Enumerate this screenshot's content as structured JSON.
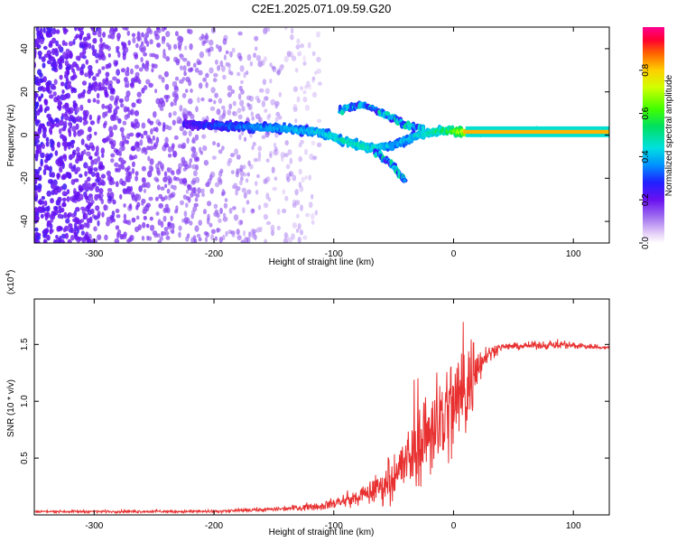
{
  "title": "C2E1.2025.071.09.59.G20",
  "chart_data": [
    {
      "type": "heatmap",
      "xlabel": "Height of straight line (km)",
      "ylabel": "Frequency (Hz)",
      "xlim": [
        -350,
        130
      ],
      "ylim": [
        -50,
        50
      ],
      "xticks": [
        -300,
        -200,
        -100,
        0,
        100
      ],
      "yticks": [
        -40,
        -20,
        0,
        20,
        40
      ],
      "colorbar": {
        "label": "Normalized spectral amplitude",
        "range": [
          0,
          1
        ],
        "ticks": [
          "0.0",
          "0.2",
          "0.4",
          "0.6",
          "0.8"
        ],
        "tick_values": [
          0,
          0.2,
          0.4,
          0.6,
          0.8
        ],
        "colormap": "rainbow-purple-to-red"
      },
      "features": {
        "noise_region_x": [
          -350,
          -110
        ],
        "main_ridge": [
          {
            "x": -220,
            "y": 5,
            "amp": 0.25
          },
          {
            "x": -180,
            "y": 4,
            "amp": 0.35
          },
          {
            "x": -140,
            "y": 3,
            "amp": 0.4
          },
          {
            "x": -110,
            "y": 1,
            "amp": 0.45
          },
          {
            "x": -90,
            "y": -3,
            "amp": 0.5
          },
          {
            "x": -70,
            "y": -6,
            "amp": 0.5
          },
          {
            "x": -50,
            "y": -5,
            "amp": 0.4
          },
          {
            "x": -30,
            "y": 0,
            "amp": 0.45
          },
          {
            "x": -10,
            "y": 2,
            "amp": 0.55
          },
          {
            "x": 10,
            "y": 1.5,
            "amp": 0.75
          },
          {
            "x": 130,
            "y": 1.5,
            "amp": 0.85
          }
        ],
        "upper_branch": [
          {
            "x": -95,
            "y": 12
          },
          {
            "x": -75,
            "y": 14
          },
          {
            "x": -55,
            "y": 9
          },
          {
            "x": -40,
            "y": 5
          },
          {
            "x": -25,
            "y": 3
          }
        ],
        "lower_branch": [
          {
            "x": -65,
            "y": -8
          },
          {
            "x": -50,
            "y": -14
          },
          {
            "x": -40,
            "y": -22
          }
        ]
      }
    },
    {
      "type": "line",
      "xlabel": "Height of straight line (km)",
      "ylabel": "SNR (10 * v/v)",
      "y_multiplier_label": "(x10",
      "y_multiplier_exp": "4",
      "xlim": [
        -350,
        130
      ],
      "ylim": [
        0,
        1.9
      ],
      "xticks": [
        -300,
        -200,
        -100,
        0,
        100
      ],
      "yticks": [
        0.5,
        1.0,
        1.5
      ],
      "color": "#e83030",
      "series": [
        {
          "envelope": [
            {
              "x": -350,
              "mean": 0.03,
              "spread": 0.01
            },
            {
              "x": -200,
              "mean": 0.03,
              "spread": 0.015
            },
            {
              "x": -150,
              "mean": 0.05,
              "spread": 0.02
            },
            {
              "x": -110,
              "mean": 0.08,
              "spread": 0.04
            },
            {
              "x": -80,
              "mean": 0.15,
              "spread": 0.08
            },
            {
              "x": -60,
              "mean": 0.25,
              "spread": 0.15
            },
            {
              "x": -40,
              "mean": 0.45,
              "spread": 0.3
            },
            {
              "x": -20,
              "mean": 0.75,
              "spread": 0.45
            },
            {
              "x": 0,
              "mean": 0.95,
              "spread": 0.55
            },
            {
              "x": 15,
              "mean": 1.2,
              "spread": 0.45
            },
            {
              "x": 25,
              "mean": 1.4,
              "spread": 0.1
            },
            {
              "x": 40,
              "mean": 1.48,
              "spread": 0.03
            },
            {
              "x": 90,
              "mean": 1.5,
              "spread": 0.04
            },
            {
              "x": 130,
              "mean": 1.47,
              "spread": 0.02
            }
          ]
        }
      ]
    }
  ]
}
